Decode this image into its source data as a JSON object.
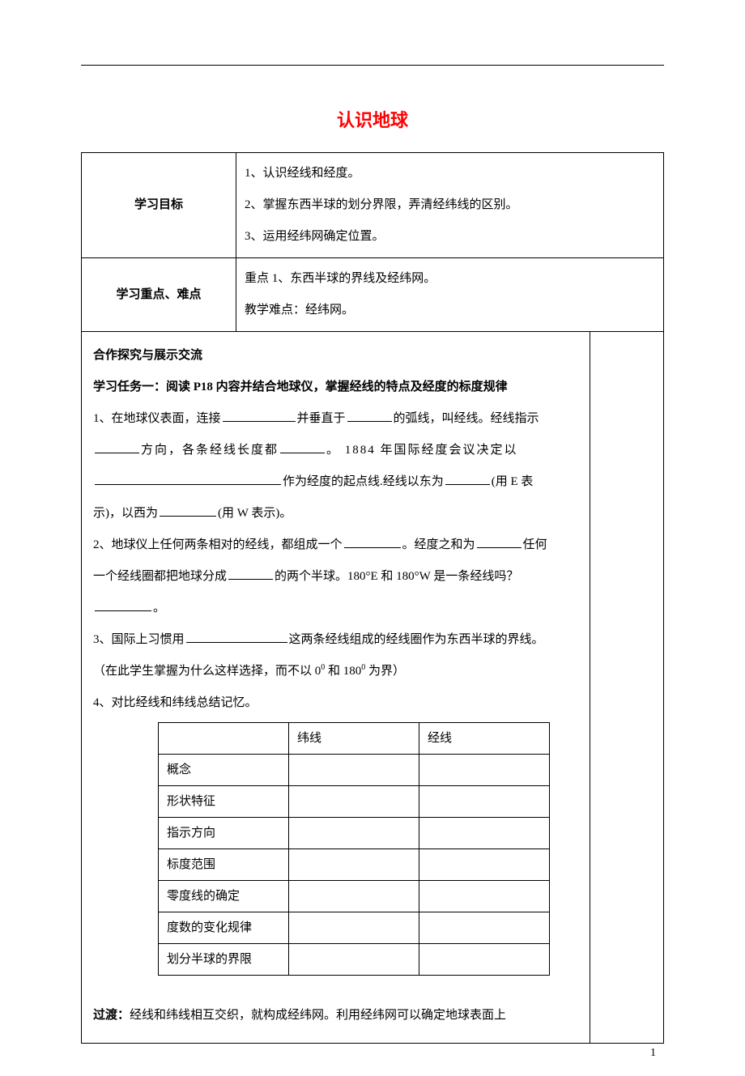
{
  "title": "认识地球",
  "rows": {
    "r1_label": "学习目标",
    "r1_l1": "1、认识经线和经度。",
    "r1_l2": "2、掌握东西半球的划分界限，弄清经纬线的区别。",
    "r1_l3": "3、运用经纬网确定位置。",
    "r2_label": "学习重点、难点",
    "r2_l1": "重点 1、东西半球的界线及经纬网。",
    "r2_l2": "教学难点：经纬网。"
  },
  "main": {
    "h1": "合作探究与展示交流",
    "h2": "学习任务一：阅读 P18 内容并结合地球仪，掌握经线的特点及经度的标度规律",
    "p1a": "1、在地球仪表面，连接",
    "p1b": "并垂直于",
    "p1c": "的弧线，叫经线。经线指示",
    "p1d": "方向，各条经线长度都",
    "p1e": "。 1884 年国际经度会议决定以",
    "p1f": "作为经度的起点线.经线以东为",
    "p1g": "(用 E 表",
    "p1h": "示)，以西为",
    "p1i": "(用 W 表示)。",
    "p2a": "2、地球仪上任何两条相对的经线，都组成一个",
    "p2b": "。经度之和为",
    "p2c": "任何",
    "p2d": "一个经线圈都把地球分成",
    "p2e": "的两个半球。180°E 和 180°W 是一条经线吗？",
    "p2f": "。",
    "p3a": "3、国际上习惯用",
    "p3b": "这两条经线组成的经线圈作为东西半球的界线。",
    "p3c": "（在此学生掌握为什么这样选择，而不以 0",
    "p3d": " 和 180",
    "p3e": " 为界）",
    "p4": "4、对比经线和纬线总结记忆。",
    "trans_label": "过渡：",
    "trans_text": "经线和纬线相互交织，就构成经纬网。利用经纬网可以确定地球表面上"
  },
  "inner": {
    "h_lat": "纬线",
    "h_lon": "经线",
    "r1": "概念",
    "r2": "形状特征",
    "r3": "指示方向",
    "r4": "标度范围",
    "r5": "零度线的确定",
    "r6": "度数的变化规律",
    "r7": "划分半球的界限"
  },
  "sup0": "0",
  "pagenum": "1"
}
